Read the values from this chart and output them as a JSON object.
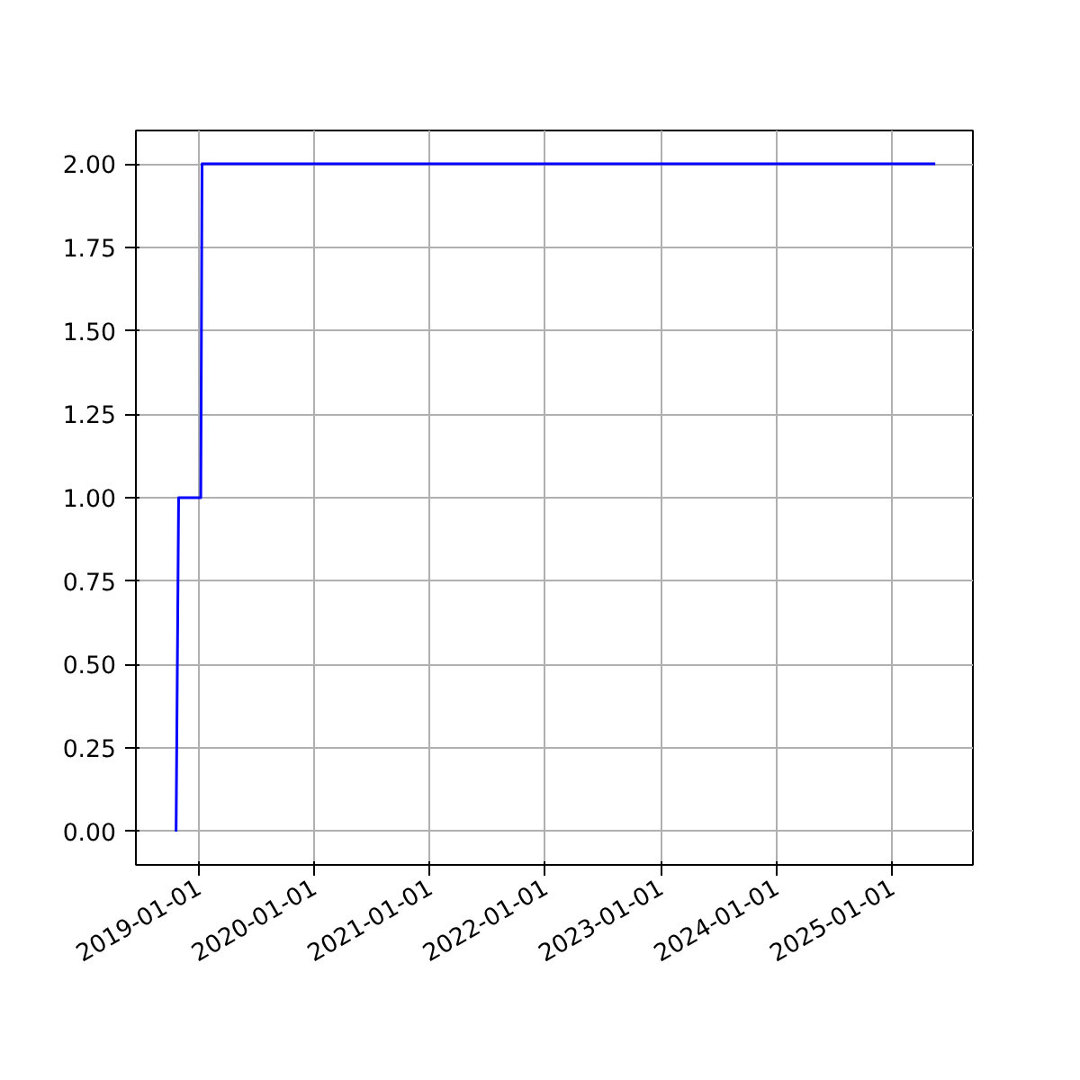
{
  "chart_data": {
    "type": "line",
    "x": [
      "2018-10-22",
      "2018-10-30",
      "2019-01-08",
      "2019-01-12",
      "2025-05-17"
    ],
    "series": [
      {
        "color": "#0000ff",
        "values": [
          0,
          1,
          1,
          2,
          2
        ]
      }
    ],
    "xlim": [
      "2018-06-17",
      "2025-09-13"
    ],
    "xticks": [
      "2019-01-01",
      "2020-01-01",
      "2021-01-01",
      "2022-01-01",
      "2023-01-01",
      "2024-01-01",
      "2025-01-01"
    ],
    "ylim": [
      -0.1,
      2.1
    ],
    "yticks": [
      {
        "value": 0,
        "label": "0.00"
      },
      {
        "value": 0.25,
        "label": "0.25"
      },
      {
        "value": 0.5,
        "label": "0.50"
      },
      {
        "value": 0.75,
        "label": "0.75"
      },
      {
        "value": 1,
        "label": "1.00"
      },
      {
        "value": 1.25,
        "label": "1.25"
      },
      {
        "value": 1.5,
        "label": "1.50"
      },
      {
        "value": 1.75,
        "label": "1.75"
      },
      {
        "value": 2,
        "label": "2.00"
      }
    ],
    "grid": true,
    "line_style": "solid"
  }
}
